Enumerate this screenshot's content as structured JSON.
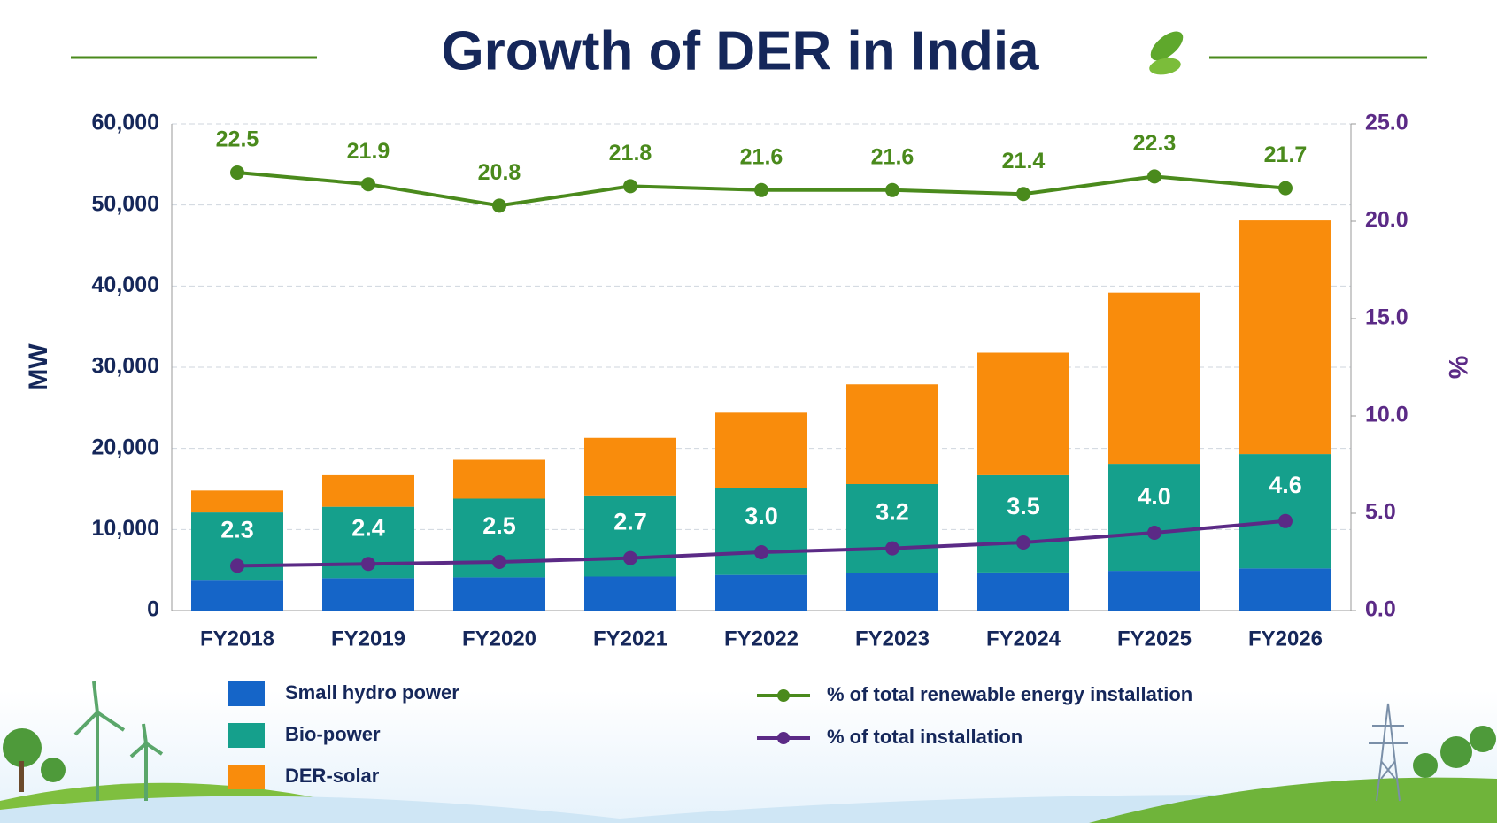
{
  "chart_data": {
    "type": "bar",
    "title": "Growth of DER in India",
    "categories": [
      "FY2018",
      "FY2019",
      "FY2020",
      "FY2021",
      "FY2022",
      "FY2023",
      "FY2024",
      "FY2025",
      "FY2026"
    ],
    "ylabel": "MW",
    "y2label": "%",
    "ylim": [
      0,
      60000
    ],
    "yticks": [
      0,
      {
        "value": 10000,
        "label": "10,000"
      },
      {
        "value": 20000,
        "label": "20,000"
      },
      {
        "value": 30000,
        "label": "30,000"
      },
      {
        "value": 40000,
        "label": "40,000"
      },
      {
        "value": 50000,
        "label": "50,000"
      },
      {
        "value": 60000,
        "label": "60,000"
      }
    ],
    "y2lim": [
      0,
      25
    ],
    "y2ticks": [
      {
        "value": 0,
        "label": "0.0"
      },
      {
        "value": 5,
        "label": "5.0"
      },
      {
        "value": 10,
        "label": "10.0"
      },
      {
        "value": 15,
        "label": "15.0"
      },
      {
        "value": 20,
        "label": "20.0"
      },
      {
        "value": 25,
        "label": "25.0"
      }
    ],
    "grid": true,
    "stacked": true,
    "series": [
      {
        "name": "Small hydro power",
        "color": "#1565c8",
        "values": [
          3800,
          4000,
          4100,
          4200,
          4400,
          4600,
          4700,
          4900,
          5200
        ]
      },
      {
        "name": "Bio-power",
        "color": "#15a08c",
        "values": [
          8300,
          8800,
          9700,
          10000,
          10700,
          11000,
          12000,
          13200,
          14100
        ]
      },
      {
        "name": "DER-solar",
        "color": "#f98c0c",
        "values": [
          2700,
          3900,
          4800,
          7100,
          9300,
          12300,
          15100,
          21100,
          28800
        ]
      },
      {
        "name": "% of total renewable energy installation",
        "color": "#4a8a1c",
        "type": "line",
        "axis": "y2",
        "values": [
          22.5,
          21.9,
          20.8,
          21.8,
          21.6,
          21.6,
          21.4,
          22.3,
          21.7
        ]
      },
      {
        "name": "% of total installation",
        "color": "#5b2a86",
        "type": "line",
        "axis": "y2",
        "values": [
          2.3,
          2.4,
          2.5,
          2.7,
          3.0,
          3.2,
          3.5,
          4.0,
          4.6
        ],
        "value_labels": [
          "2.3",
          "2.4",
          "2.5",
          "2.7",
          "3.0",
          "3.2",
          "3.5",
          "4.0",
          "4.6"
        ]
      }
    ]
  }
}
